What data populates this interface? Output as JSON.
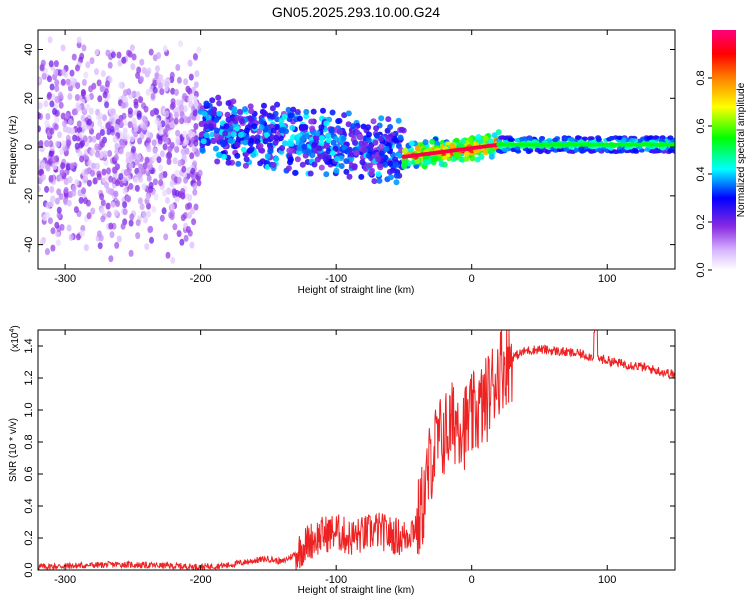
{
  "title": "GN05.2025.293.10.00.G24",
  "chart_data": [
    {
      "type": "heatmap",
      "xlabel": "Height of straight line (km)",
      "ylabel": "Frequency (Hz)",
      "xlim": [
        -320,
        150
      ],
      "ylim": [
        -50,
        48
      ],
      "x_ticks": [
        -300,
        -200,
        -100,
        0,
        100
      ],
      "x_tick_labels": [
        "-300",
        "-200",
        "-100",
        "0",
        "100"
      ],
      "y_ticks": [
        -40,
        -20,
        0,
        20,
        40
      ],
      "y_tick_labels": [
        "-40",
        "-20",
        "0",
        "20",
        "40"
      ],
      "colorbar": {
        "label": "Normalized spectral amplitude",
        "range": [
          0,
          1
        ],
        "ticks": [
          0.0,
          0.2,
          0.4,
          0.6,
          0.8
        ],
        "tick_labels": [
          "0.0",
          "0.2",
          "0.4",
          "0.6",
          "0.8"
        ],
        "colormap": [
          "#ffffff",
          "#d9b8ff",
          "#8a2be2",
          "#0000ff",
          "#00ffff",
          "#00ff00",
          "#ffff00",
          "#ff8000",
          "#ff0000",
          "#ff007f"
        ]
      },
      "description_regions": [
        {
          "x_range": [
            -320,
            -200
          ],
          "freq_spread": 48,
          "amplitude": [
            0.05,
            0.25
          ]
        },
        {
          "x_range": [
            -200,
            -50
          ],
          "freq_spread": 15,
          "amplitude": [
            0.2,
            0.45
          ]
        },
        {
          "x_range": [
            -50,
            20
          ],
          "freq_spread": 6,
          "amplitude": [
            0.6,
            1.0
          ]
        },
        {
          "x_range": [
            20,
            150
          ],
          "freq_spread": 3,
          "amplitude": [
            0.45,
            0.6
          ]
        }
      ]
    },
    {
      "type": "line",
      "xlabel": "Height of straight line (km)",
      "ylabel": "SNR (10 * v/v)",
      "y_scale_label_base": "(x10",
      "y_scale_label_exp": "4",
      "y_scale_label_close": ")",
      "xlim": [
        -320,
        150
      ],
      "ylim": [
        0.0,
        1.5
      ],
      "x_ticks": [
        -300,
        -200,
        -100,
        0,
        100
      ],
      "x_tick_labels": [
        "-300",
        "-200",
        "-100",
        "0",
        "100"
      ],
      "y_ticks": [
        0.0,
        0.2,
        0.4,
        0.6,
        0.8,
        1.0,
        1.2,
        1.4
      ],
      "y_tick_labels": [
        "0.0",
        "0.2",
        "0.4",
        "0.6",
        "0.8",
        "1.0",
        "1.2",
        "1.4"
      ],
      "color": "#ee2222",
      "series": [
        {
          "name": "SNR",
          "x": [
            -320,
            -300,
            -280,
            -260,
            -240,
            -220,
            -200,
            -180,
            -160,
            -150,
            -140,
            -130,
            -120,
            -110,
            -100,
            -90,
            -80,
            -70,
            -60,
            -50,
            -45,
            -40,
            -35,
            -30,
            -25,
            -20,
            -15,
            -10,
            -5,
            0,
            5,
            10,
            15,
            20,
            25,
            30,
            35,
            40,
            50,
            60,
            70,
            80,
            90,
            95,
            100,
            110,
            120,
            130,
            140,
            150
          ],
          "values": [
            0.02,
            0.025,
            0.03,
            0.035,
            0.03,
            0.025,
            0.02,
            0.03,
            0.06,
            0.07,
            0.05,
            0.1,
            0.18,
            0.22,
            0.24,
            0.2,
            0.22,
            0.25,
            0.22,
            0.2,
            0.25,
            0.28,
            0.45,
            0.7,
            0.8,
            0.85,
            0.9,
            0.95,
            0.9,
            0.95,
            1.0,
            1.05,
            1.15,
            1.25,
            1.3,
            1.33,
            1.35,
            1.37,
            1.38,
            1.37,
            1.36,
            1.35,
            1.33,
            1.32,
            1.31,
            1.29,
            1.28,
            1.26,
            1.24,
            1.22
          ]
        }
      ]
    }
  ]
}
